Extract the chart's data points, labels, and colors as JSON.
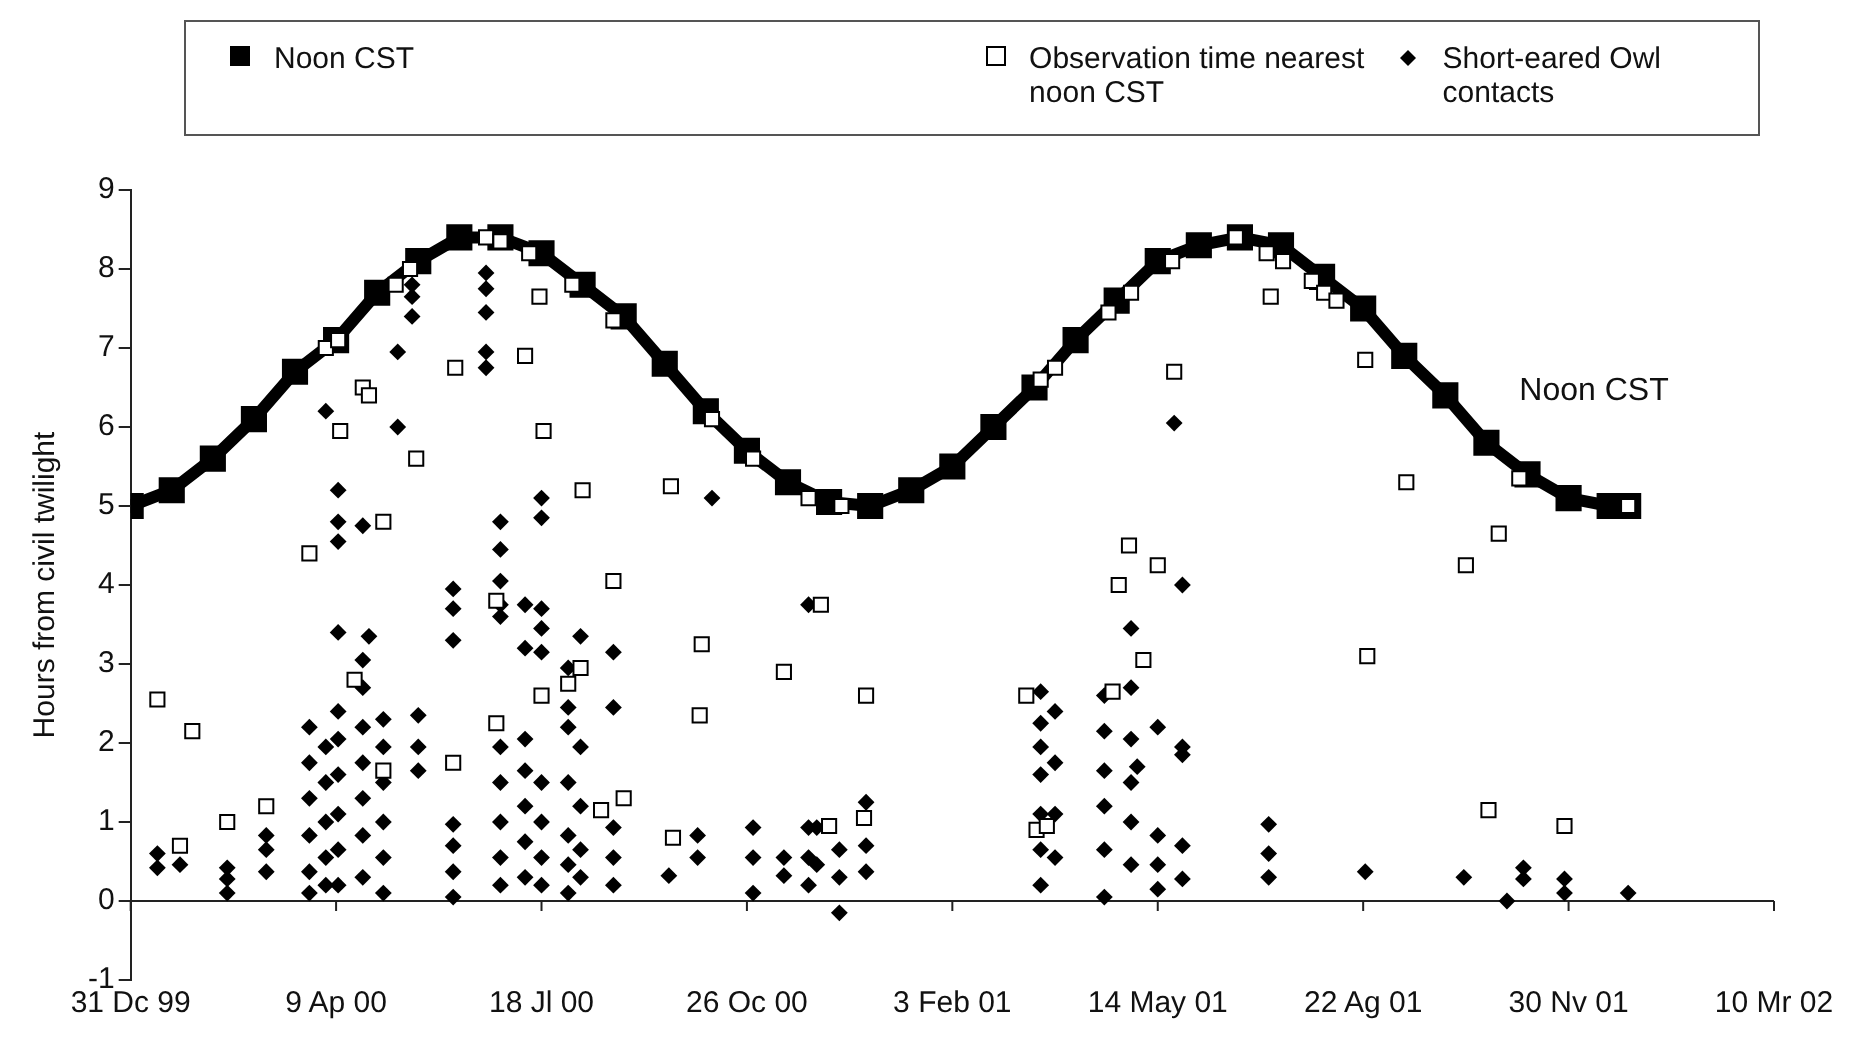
{
  "chart_data": {
    "type": "scatter",
    "ylabel": "Hours from civil twilight",
    "legend": "top",
    "grid": false,
    "xlim": [
      "1999-12-31",
      "2002-03-10"
    ],
    "xticks": [
      {
        "value": "1999-12-31",
        "label": "31 Dc 99"
      },
      {
        "value": "2000-04-09",
        "label": "9 Ap 00"
      },
      {
        "value": "2000-07-18",
        "label": "18 Jl 00"
      },
      {
        "value": "2000-10-26",
        "label": "26 Oc 00"
      },
      {
        "value": "2001-02-03",
        "label": "3 Feb 01"
      },
      {
        "value": "2001-05-14",
        "label": "14 May 01"
      },
      {
        "value": "2001-08-22",
        "label": "22 Ag 01"
      },
      {
        "value": "2001-11-30",
        "label": "30 Nv 01"
      },
      {
        "value": "2002-03-10",
        "label": "10 Mr 02"
      }
    ],
    "ylim": [
      -1,
      9
    ],
    "yticks": [
      -1,
      0,
      1,
      2,
      3,
      4,
      5,
      6,
      7,
      8,
      9
    ],
    "annotations": [
      "Noon CST"
    ],
    "ref_lines": [
      {
        "axis": "y",
        "value": 0,
        "color": "#222222"
      }
    ],
    "series": [
      {
        "name": "Noon CST",
        "type": "line",
        "marker": "square",
        "color": "#000000",
        "x": [
          "1999-12-31",
          "2000-01-20",
          "2000-02-09",
          "2000-02-29",
          "2000-03-20",
          "2000-04-09",
          "2000-04-29",
          "2000-05-19",
          "2000-06-08",
          "2000-06-28",
          "2000-07-18",
          "2000-08-07",
          "2000-08-27",
          "2000-09-16",
          "2000-10-06",
          "2000-10-26",
          "2000-11-15",
          "2000-12-05",
          "2000-12-25",
          "2001-01-14",
          "2001-02-03",
          "2001-02-23",
          "2001-03-15",
          "2001-04-04",
          "2001-04-24",
          "2001-05-14",
          "2001-06-03",
          "2001-06-23",
          "2001-07-13",
          "2001-08-02",
          "2001-08-22",
          "2001-09-11",
          "2001-10-01",
          "2001-10-21",
          "2001-11-10",
          "2001-11-30",
          "2001-12-20",
          "2001-12-29"
        ],
        "values": [
          5.0,
          5.2,
          5.6,
          6.1,
          6.7,
          7.1,
          7.7,
          8.1,
          8.4,
          8.4,
          8.2,
          7.8,
          7.4,
          6.8,
          6.2,
          5.7,
          5.3,
          5.05,
          5.0,
          5.2,
          5.5,
          6.0,
          6.5,
          7.1,
          7.6,
          8.1,
          8.3,
          8.4,
          8.3,
          7.9,
          7.5,
          6.9,
          6.4,
          5.8,
          5.4,
          5.1,
          5.0,
          5.0
        ]
      },
      {
        "name": "Observation time nearest noon CST",
        "marker": "square",
        "color": "#000000",
        "x": [
          "2000-01-13",
          "2000-01-30",
          "2000-01-24",
          "2000-02-16",
          "2000-03-06",
          "2000-03-27",
          "2000-04-04",
          "2000-04-10",
          "2000-04-11",
          "2000-04-18",
          "2000-04-22",
          "2000-04-25",
          "2000-05-02",
          "2000-05-02",
          "2000-05-08",
          "2000-05-15",
          "2000-05-18",
          "2000-06-06",
          "2000-06-05",
          "2000-06-21",
          "2000-06-28",
          "2000-07-12",
          "2000-07-17",
          "2000-07-10",
          "2000-07-19",
          "2000-08-02",
          "2000-08-07",
          "2000-08-22",
          "2000-08-22",
          "2000-06-26",
          "2000-06-26",
          "2000-07-18",
          "2000-08-06",
          "2000-07-31",
          "2000-08-27",
          "2000-08-16",
          "2000-09-19",
          "2000-09-20",
          "2000-10-04",
          "2000-10-03",
          "2000-10-09",
          "2000-10-29",
          "2000-11-13",
          "2000-11-25",
          "2000-12-01",
          "2000-12-11",
          "2000-12-23",
          "2000-12-05",
          "2000-12-22",
          "2001-03-18",
          "2001-03-25",
          "2001-04-20",
          "2001-05-01",
          "2001-05-21",
          "2001-04-30",
          "2001-04-25",
          "2001-05-14",
          "2001-05-07",
          "2001-03-11",
          "2001-03-16",
          "2001-03-21",
          "2001-04-22",
          "2001-05-22",
          "2001-06-21",
          "2001-07-06",
          "2001-07-14",
          "2001-07-28",
          "2001-08-03",
          "2001-08-09",
          "2001-07-08",
          "2001-08-23",
          "2001-09-12",
          "2001-08-24",
          "2001-10-11",
          "2001-10-27",
          "2001-11-06",
          "2001-10-22",
          "2001-11-28",
          "2001-12-29"
        ],
        "values": [
          2.55,
          2.15,
          0.7,
          1.0,
          1.2,
          4.4,
          7.0,
          7.1,
          5.95,
          2.8,
          6.5,
          6.4,
          4.8,
          1.65,
          7.8,
          8.0,
          5.6,
          6.75,
          1.75,
          8.4,
          8.35,
          8.2,
          7.65,
          6.9,
          5.95,
          7.8,
          5.2,
          7.35,
          4.05,
          3.8,
          2.25,
          2.6,
          2.95,
          2.75,
          1.3,
          1.15,
          5.25,
          0.8,
          3.25,
          2.35,
          6.1,
          5.6,
          2.9,
          5.1,
          3.75,
          5.0,
          2.6,
          0.95,
          1.05,
          6.6,
          6.75,
          7.45,
          7.7,
          8.1,
          4.5,
          4.0,
          4.25,
          3.05,
          2.6,
          0.9,
          0.95,
          2.65,
          6.7,
          8.4,
          8.2,
          8.1,
          7.85,
          7.7,
          7.6,
          7.65,
          6.85,
          5.3,
          3.1,
          4.25,
          4.65,
          5.35,
          1.15,
          0.95,
          5.0
        ]
      },
      {
        "name": "Short-eared Owl contacts",
        "marker": "diamond",
        "color": "#000000",
        "x": [
          "2000-01-13",
          "2000-01-13",
          "2000-01-24",
          "2000-02-16",
          "2000-02-16",
          "2000-02-16",
          "2000-03-06",
          "2000-03-06",
          "2000-03-06",
          "2000-03-27",
          "2000-03-27",
          "2000-03-27",
          "2000-03-27",
          "2000-03-27",
          "2000-03-27",
          "2000-04-04",
          "2000-04-04",
          "2000-04-04",
          "2000-04-04",
          "2000-04-04",
          "2000-04-04",
          "2000-04-10",
          "2000-04-10",
          "2000-04-10",
          "2000-04-10",
          "2000-04-10",
          "2000-04-10",
          "2000-04-10",
          "2000-04-10",
          "2000-04-10",
          "2000-04-10",
          "2000-04-22",
          "2000-04-22",
          "2000-04-22",
          "2000-04-22",
          "2000-04-22",
          "2000-04-22",
          "2000-04-22",
          "2000-04-22",
          "2000-04-25",
          "2000-05-02",
          "2000-05-02",
          "2000-05-02",
          "2000-05-02",
          "2000-05-02",
          "2000-05-02",
          "2000-05-09",
          "2000-05-09",
          "2000-05-16",
          "2000-05-16",
          "2000-05-16",
          "2000-05-19",
          "2000-05-19",
          "2000-05-19",
          "2000-06-05",
          "2000-06-05",
          "2000-06-05",
          "2000-06-05",
          "2000-06-05",
          "2000-06-05",
          "2000-06-05",
          "2000-06-21",
          "2000-06-21",
          "2000-06-21",
          "2000-06-21",
          "2000-06-21",
          "2000-06-28",
          "2000-06-28",
          "2000-06-28",
          "2000-06-28",
          "2000-06-28",
          "2000-06-28",
          "2000-06-28",
          "2000-06-28",
          "2000-06-28",
          "2000-06-28",
          "2000-07-10",
          "2000-07-10",
          "2000-07-10",
          "2000-07-10",
          "2000-07-10",
          "2000-07-10",
          "2000-07-10",
          "2000-07-18",
          "2000-07-18",
          "2000-07-18",
          "2000-07-18",
          "2000-07-18",
          "2000-07-18",
          "2000-07-18",
          "2000-07-18",
          "2000-07-18",
          "2000-07-31",
          "2000-07-31",
          "2000-07-31",
          "2000-07-31",
          "2000-07-31",
          "2000-07-31",
          "2000-07-31",
          "2000-08-06",
          "2000-08-06",
          "2000-08-06",
          "2000-08-06",
          "2000-08-06",
          "2000-08-22",
          "2000-08-22",
          "2000-08-22",
          "2000-08-22",
          "2000-08-22",
          "2000-09-18",
          "2000-10-02",
          "2000-10-02",
          "2000-10-09",
          "2000-10-29",
          "2000-10-29",
          "2000-10-29",
          "2000-11-13",
          "2000-11-13",
          "2000-11-25",
          "2000-11-25",
          "2000-11-25",
          "2000-11-25",
          "2000-11-29",
          "2000-11-29",
          "2000-12-10",
          "2000-12-10",
          "2000-12-10",
          "2000-12-23",
          "2000-12-23",
          "2000-12-23",
          "2001-03-18",
          "2001-03-18",
          "2001-03-18",
          "2001-03-18",
          "2001-03-18",
          "2001-03-18",
          "2001-03-18",
          "2001-03-25",
          "2001-03-25",
          "2001-03-25",
          "2001-03-25",
          "2001-04-18",
          "2001-04-18",
          "2001-04-18",
          "2001-04-18",
          "2001-04-18",
          "2001-04-18",
          "2001-05-01",
          "2001-05-01",
          "2001-05-01",
          "2001-05-01",
          "2001-05-01",
          "2001-05-01",
          "2001-05-04",
          "2001-05-14",
          "2001-05-14",
          "2001-05-14",
          "2001-05-14",
          "2001-05-22",
          "2001-05-26",
          "2001-05-26",
          "2001-05-26",
          "2001-05-26",
          "2001-05-26",
          "2001-07-07",
          "2001-07-07",
          "2001-07-07",
          "2001-08-23",
          "2001-10-10",
          "2001-10-31",
          "2001-11-08",
          "2001-11-08",
          "2001-11-28",
          "2001-11-28",
          "2001-12-29"
        ],
        "values": [
          0.6,
          0.42,
          0.46,
          0.42,
          0.1,
          0.28,
          0.83,
          0.65,
          0.37,
          2.2,
          1.75,
          1.3,
          0.83,
          0.37,
          0.1,
          6.2,
          1.95,
          1.5,
          1.0,
          0.55,
          0.2,
          5.2,
          4.8,
          4.55,
          3.4,
          2.4,
          2.05,
          1.6,
          1.1,
          0.65,
          0.2,
          4.75,
          3.05,
          2.7,
          2.2,
          1.75,
          1.3,
          0.83,
          0.3,
          3.35,
          2.3,
          1.95,
          1.5,
          1.0,
          0.55,
          0.1,
          6.95,
          6.0,
          7.8,
          7.65,
          7.4,
          2.35,
          1.95,
          1.65,
          3.95,
          3.7,
          3.3,
          0.97,
          0.7,
          0.37,
          0.05,
          7.95,
          7.75,
          7.45,
          6.95,
          6.75,
          4.8,
          4.45,
          4.05,
          3.75,
          3.6,
          1.95,
          1.5,
          1.0,
          0.55,
          0.2,
          3.75,
          3.2,
          2.05,
          1.65,
          1.2,
          0.75,
          0.3,
          5.1,
          4.85,
          3.7,
          3.45,
          3.15,
          1.5,
          1.0,
          0.55,
          0.2,
          2.95,
          2.45,
          2.2,
          1.5,
          0.83,
          0.46,
          0.1,
          3.35,
          1.95,
          1.2,
          0.65,
          0.3,
          3.15,
          2.45,
          0.93,
          0.55,
          0.2,
          0.32,
          0.83,
          0.55,
          5.1,
          0.93,
          0.55,
          0.1,
          0.55,
          0.32,
          3.75,
          0.93,
          0.55,
          0.2,
          0.93,
          0.46,
          0.65,
          0.3,
          -0.15,
          1.25,
          0.7,
          0.37,
          2.65,
          2.25,
          1.95,
          1.6,
          1.1,
          0.65,
          0.2,
          2.4,
          1.75,
          1.1,
          0.55,
          2.6,
          2.15,
          1.65,
          1.2,
          0.65,
          0.05,
          3.45,
          2.7,
          2.05,
          1.5,
          1.0,
          0.46,
          1.7,
          2.2,
          0.83,
          0.46,
          0.15,
          6.05,
          4.0,
          1.95,
          1.85,
          0.7,
          0.28,
          0.97,
          0.6,
          0.3,
          0.37,
          0.3,
          0.0,
          0.42,
          0.28,
          0.28,
          0.1,
          0.1
        ]
      }
    ]
  }
}
